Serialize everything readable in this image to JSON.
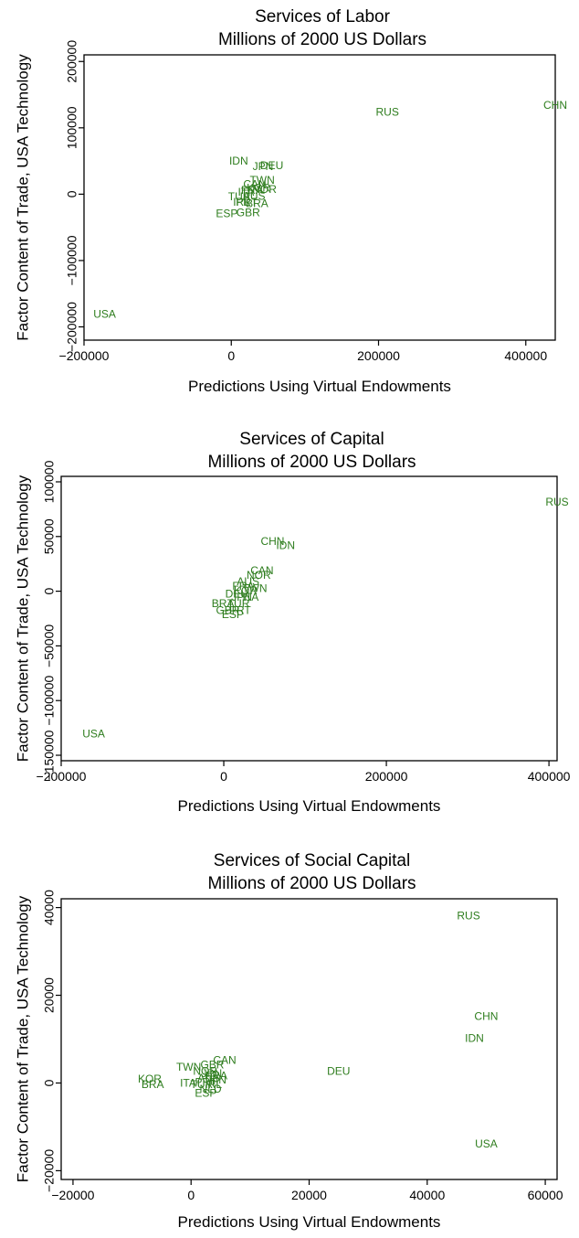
{
  "point_color": "#2e7d1e",
  "chart_data": [
    {
      "type": "scatter",
      "title": "Services of Labor",
      "subtitle": "Millions of 2000 US Dollars",
      "xlabel": "Predictions Using Virtual Endowments",
      "ylabel": "Factor Content of Trade, USA Technology",
      "xlim": [
        -200000,
        440000
      ],
      "ylim": [
        -220000,
        210000
      ],
      "xticks": [
        -200000,
        0,
        200000,
        400000
      ],
      "xtick_labels": [
        "−200000",
        "0",
        "200000",
        "400000"
      ],
      "yticks": [
        -200000,
        -100000,
        0,
        100000,
        200000
      ],
      "ytick_labels": [
        "−200000",
        "−100000",
        "0",
        "100000",
        "200000"
      ],
      "grid": false,
      "points": [
        {
          "label": "CHN",
          "x": 440000,
          "y": 133000
        },
        {
          "label": "RUS",
          "x": 212000,
          "y": 123000
        },
        {
          "label": "IDN",
          "x": 10000,
          "y": 49000
        },
        {
          "label": "JPN",
          "x": 43000,
          "y": 41000
        },
        {
          "label": "DEU",
          "x": 55000,
          "y": 42000
        },
        {
          "label": "TWN",
          "x": 42000,
          "y": 20000
        },
        {
          "label": "CAN",
          "x": 32000,
          "y": 14000
        },
        {
          "label": "KOR",
          "x": 37000,
          "y": 8000
        },
        {
          "label": "FRA",
          "x": 28000,
          "y": 5000
        },
        {
          "label": "ITA",
          "x": 20000,
          "y": 2000
        },
        {
          "label": "NOR",
          "x": 45000,
          "y": 6000
        },
        {
          "label": "AUS",
          "x": 31000,
          "y": -4000
        },
        {
          "label": "TUR",
          "x": 11000,
          "y": -5000
        },
        {
          "label": "IRL",
          "x": 14000,
          "y": -13000
        },
        {
          "label": "PRT",
          "x": 21000,
          "y": -13000
        },
        {
          "label": "BRA",
          "x": 35000,
          "y": -15000
        },
        {
          "label": "ESP",
          "x": -6000,
          "y": -30000
        },
        {
          "label": "GBR",
          "x": 23000,
          "y": -29000
        },
        {
          "label": "USA",
          "x": -172000,
          "y": -182000
        }
      ]
    },
    {
      "type": "scatter",
      "title": "Services of Capital",
      "subtitle": "Millions of 2000 US Dollars",
      "xlabel": "Predictions Using Virtual Endowments",
      "ylabel": "Factor Content of Trade, USA Technology",
      "xlim": [
        -200000,
        410000
      ],
      "ylim": [
        -155000,
        105000
      ],
      "xticks": [
        -200000,
        0,
        200000,
        400000
      ],
      "xtick_labels": [
        "−200000",
        "0",
        "200000",
        "400000"
      ],
      "yticks": [
        -150000,
        -100000,
        -50000,
        0,
        50000,
        100000
      ],
      "ytick_labels": [
        "−150000",
        "−100000",
        "−50000",
        "0",
        "50000",
        "100000"
      ],
      "grid": false,
      "points": [
        {
          "label": "RUS",
          "x": 410000,
          "y": 81000
        },
        {
          "label": "CHN",
          "x": 60000,
          "y": 45000
        },
        {
          "label": "IDN",
          "x": 76000,
          "y": 41000
        },
        {
          "label": "CAN",
          "x": 47000,
          "y": 18000
        },
        {
          "label": "NOR",
          "x": 43000,
          "y": 14000
        },
        {
          "label": "AUS",
          "x": 30000,
          "y": 8000
        },
        {
          "label": "FRA",
          "x": 24000,
          "y": 4000
        },
        {
          "label": "TWN",
          "x": 38000,
          "y": 2000
        },
        {
          "label": "KOR",
          "x": 27000,
          "y": 0
        },
        {
          "label": "DEU",
          "x": 16000,
          "y": -3000
        },
        {
          "label": "ITA",
          "x": 33000,
          "y": -6000
        },
        {
          "label": "JPN",
          "x": 22000,
          "y": -6000
        },
        {
          "label": "BRA",
          "x": -1000,
          "y": -12000
        },
        {
          "label": "TUR",
          "x": 18000,
          "y": -12000
        },
        {
          "label": "GBR",
          "x": 5000,
          "y": -18000
        },
        {
          "label": "PRT",
          "x": 20000,
          "y": -18000
        },
        {
          "label": "ESP",
          "x": 11000,
          "y": -22000
        },
        {
          "label": "USA",
          "x": -160000,
          "y": -131000
        }
      ]
    },
    {
      "type": "scatter",
      "title": "Services of Social Capital",
      "subtitle": "Millions of 2000 US Dollars",
      "xlabel": "Predictions Using Virtual Endowments",
      "ylabel": "Factor Content of Trade, USA Technology",
      "xlim": [
        -22000,
        62000
      ],
      "ylim": [
        -22000,
        42000
      ],
      "xticks": [
        -20000,
        0,
        20000,
        40000,
        60000
      ],
      "xtick_labels": [
        "−20000",
        "0",
        "20000",
        "40000",
        "60000"
      ],
      "yticks": [
        -20000,
        0,
        20000,
        40000
      ],
      "ytick_labels": [
        "−20000",
        "0",
        "20000",
        "40000"
      ],
      "grid": false,
      "points": [
        {
          "label": "RUS",
          "x": 47000,
          "y": 38000
        },
        {
          "label": "CHN",
          "x": 50000,
          "y": 15000
        },
        {
          "label": "IDN",
          "x": 48000,
          "y": 10000
        },
        {
          "label": "DEU",
          "x": 25000,
          "y": 2500
        },
        {
          "label": "CAN",
          "x": 5700,
          "y": 5000
        },
        {
          "label": "GBR",
          "x": 3600,
          "y": 4000
        },
        {
          "label": "TWN",
          "x": -400,
          "y": 3500
        },
        {
          "label": "NOR",
          "x": 2400,
          "y": 2500
        },
        {
          "label": "JPN",
          "x": 3500,
          "y": 2000
        },
        {
          "label": "FRA",
          "x": 4300,
          "y": 1500
        },
        {
          "label": "AUS",
          "x": 3000,
          "y": 1000
        },
        {
          "label": "FIN",
          "x": 4500,
          "y": 500
        },
        {
          "label": "PRT",
          "x": 2500,
          "y": 0
        },
        {
          "label": "IRL",
          "x": 3800,
          "y": -500
        },
        {
          "label": "ITA",
          "x": -500,
          "y": -200
        },
        {
          "label": "TUR",
          "x": 1800,
          "y": -500
        },
        {
          "label": "NLD",
          "x": 3300,
          "y": -1500
        },
        {
          "label": "ESP",
          "x": 2500,
          "y": -2500
        },
        {
          "label": "KOR",
          "x": -7000,
          "y": 800
        },
        {
          "label": "BRA",
          "x": -6500,
          "y": -500
        },
        {
          "label": "USA",
          "x": 50000,
          "y": -14000
        }
      ]
    }
  ]
}
